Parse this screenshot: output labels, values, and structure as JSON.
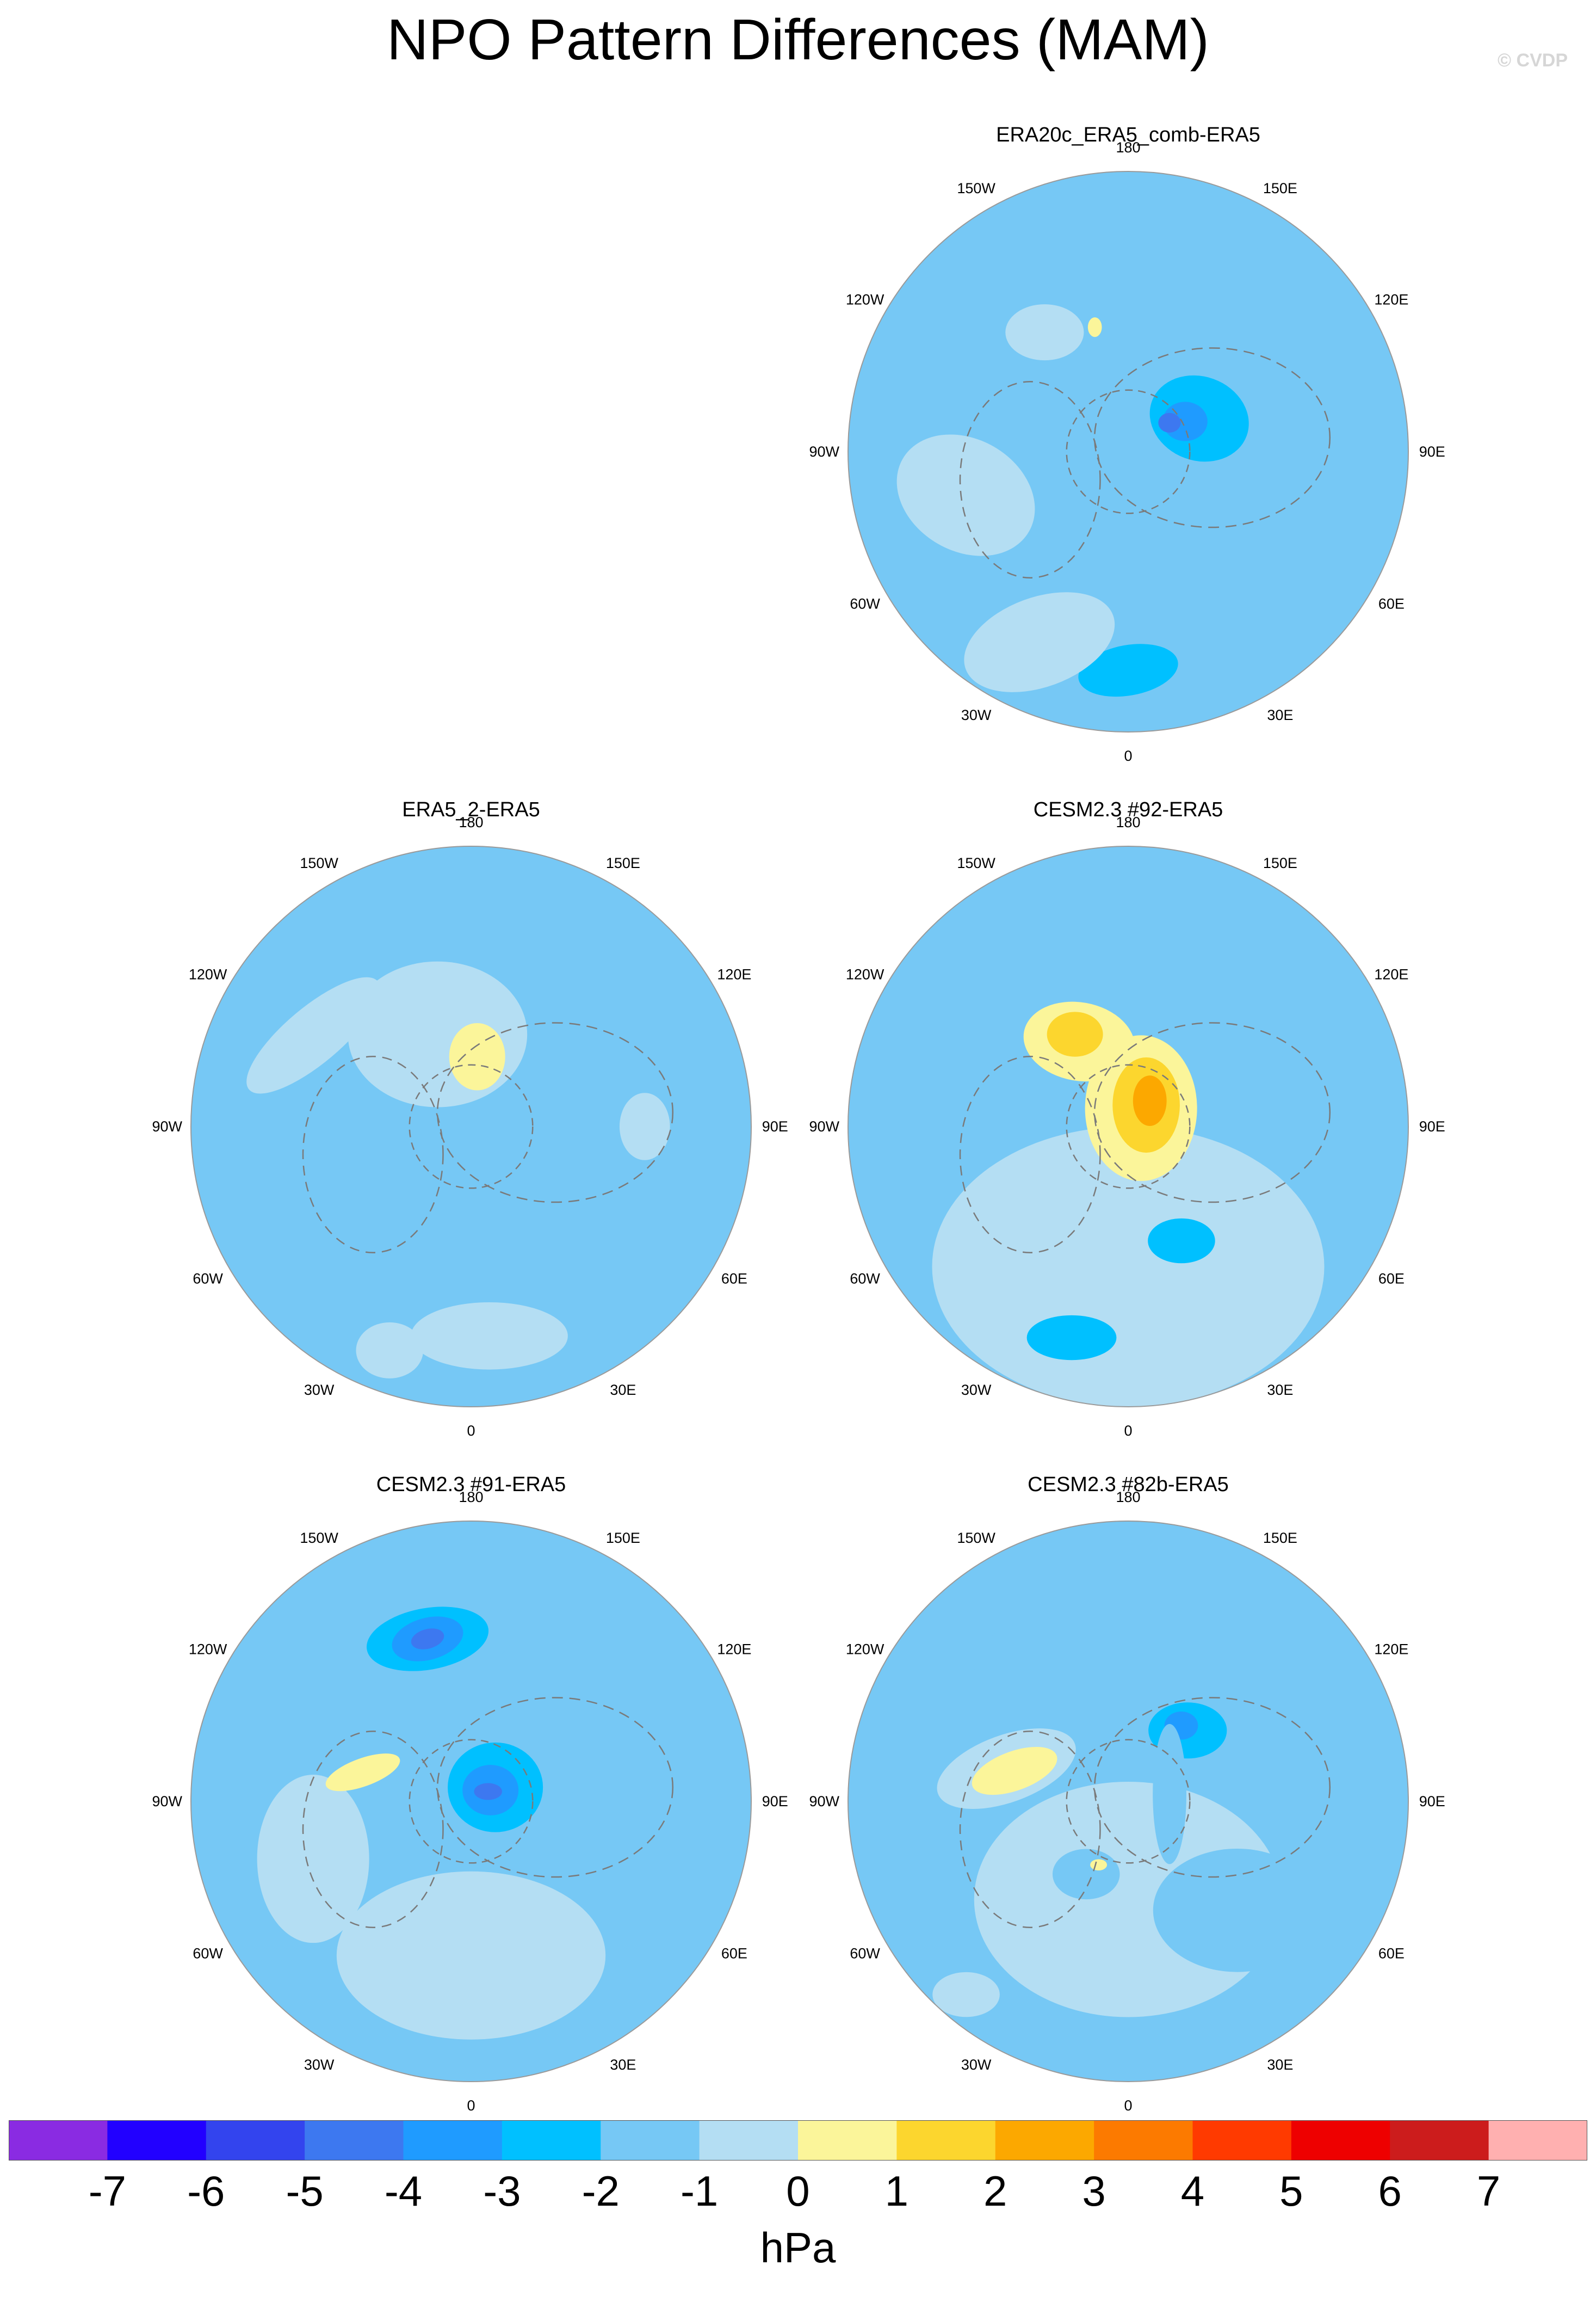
{
  "title": "NPO Pattern Differences (MAM)",
  "copyright": "© CVDP",
  "longitude_labels": [
    "180",
    "150E",
    "120E",
    "90E",
    "60E",
    "30E",
    "0",
    "30W",
    "60W",
    "90W",
    "120W",
    "150W"
  ],
  "panels": [
    {
      "id": "p1",
      "title": "ERA20c_ERA5_comb-ERA5",
      "features": [
        {
          "type": "ellipse",
          "lon": 0,
          "r": 0.78,
          "rx": 0.18,
          "ry": 0.09,
          "rot": -10,
          "level": -2
        },
        {
          "type": "ellipse",
          "lon": 250,
          "r": 0.3,
          "rx": 0.14,
          "ry": 0.1,
          "rot": 0,
          "level": -1
        },
        {
          "type": "ellipse",
          "lon": 115,
          "r": 0.28,
          "rx": 0.18,
          "ry": 0.15,
          "rot": 20,
          "level": -2
        },
        {
          "type": "ellipse",
          "lon": 118,
          "r": 0.23,
          "rx": 0.08,
          "ry": 0.07,
          "rot": 0,
          "level": -3
        },
        {
          "type": "ellipse",
          "lon": 125,
          "r": 0.18,
          "rx": 0.04,
          "ry": 0.035,
          "rot": 0,
          "level": -4
        },
        {
          "type": "ellipse",
          "lon": 215,
          "r": 0.52,
          "rx": 0.14,
          "ry": 0.1,
          "rot": 0,
          "level": 0
        },
        {
          "type": "ellipse",
          "lon": 195,
          "r": 0.46,
          "rx": 0.025,
          "ry": 0.035,
          "rot": 0,
          "level": 1
        },
        {
          "type": "ellipse",
          "lon": 285,
          "r": 0.6,
          "rx": 0.26,
          "ry": 0.2,
          "rot": 30,
          "level": 0
        },
        {
          "type": "ellipse",
          "lon": 335,
          "r": 0.75,
          "rx": 0.28,
          "ry": 0.16,
          "rot": -20,
          "level": 0
        },
        {
          "type": "ellipse",
          "lon": 150,
          "r": 0.78,
          "rx": 0.1,
          "ry": 0.07,
          "rot": 0,
          "level": -1
        }
      ]
    },
    {
      "id": "p2",
      "title": "ERA5_2-ERA5",
      "features": [
        {
          "type": "ellipse",
          "lon": 200,
          "r": 0.35,
          "rx": 0.32,
          "ry": 0.26,
          "rot": 0,
          "level": 0
        },
        {
          "type": "ellipse",
          "lon": 240,
          "r": 0.65,
          "rx": 0.3,
          "ry": 0.1,
          "rot": -40,
          "level": 0
        },
        {
          "type": "ellipse",
          "lon": 5,
          "r": 0.75,
          "rx": 0.28,
          "ry": 0.12,
          "rot": 0,
          "level": 0
        },
        {
          "type": "ellipse",
          "lon": 175,
          "r": 0.25,
          "rx": 0.1,
          "ry": 0.12,
          "rot": 0,
          "level": 1
        },
        {
          "type": "ellipse",
          "lon": 90,
          "r": 0.62,
          "rx": 0.09,
          "ry": 0.12,
          "rot": 0,
          "level": 0
        },
        {
          "type": "ellipse",
          "lon": 340,
          "r": 0.85,
          "rx": 0.12,
          "ry": 0.1,
          "rot": 0,
          "level": 0
        }
      ]
    },
    {
      "id": "p3",
      "title": "CESM2.3 #92-ERA5",
      "features": [
        {
          "type": "ellipse",
          "lon": 0,
          "r": 0.5,
          "rx": 0.7,
          "ry": 0.5,
          "rot": 0,
          "level": 0
        },
        {
          "type": "ellipse",
          "lon": 210,
          "r": 0.35,
          "rx": 0.2,
          "ry": 0.14,
          "rot": 10,
          "level": 1
        },
        {
          "type": "ellipse",
          "lon": 210,
          "r": 0.38,
          "rx": 0.1,
          "ry": 0.08,
          "rot": 0,
          "level": 2
        },
        {
          "type": "ellipse",
          "lon": 145,
          "r": 0.08,
          "rx": 0.2,
          "ry": 0.26,
          "rot": 0,
          "level": 1
        },
        {
          "type": "ellipse",
          "lon": 140,
          "r": 0.1,
          "rx": 0.12,
          "ry": 0.17,
          "rot": 0,
          "level": 2
        },
        {
          "type": "ellipse",
          "lon": 140,
          "r": 0.12,
          "rx": 0.06,
          "ry": 0.09,
          "rot": 0,
          "level": 3
        },
        {
          "type": "ellipse",
          "lon": 345,
          "r": 0.78,
          "rx": 0.16,
          "ry": 0.08,
          "rot": 0,
          "level": -2
        },
        {
          "type": "ellipse",
          "lon": 25,
          "r": 0.45,
          "rx": 0.12,
          "ry": 0.08,
          "rot": 0,
          "level": -2
        },
        {
          "type": "ellipse",
          "lon": 240,
          "r": 0.58,
          "rx": 0.07,
          "ry": 0.03,
          "rot": 0,
          "level": -1
        },
        {
          "type": "ellipse",
          "lon": 115,
          "r": 0.8,
          "rx": 0.2,
          "ry": 0.18,
          "rot": 0,
          "level": -1
        }
      ]
    },
    {
      "id": "p4",
      "title": "CESM2.3 #91-ERA5",
      "features": [
        {
          "type": "ellipse",
          "lon": 0,
          "r": 0.55,
          "rx": 0.48,
          "ry": 0.3,
          "rot": 0,
          "level": 0
        },
        {
          "type": "ellipse",
          "lon": 290,
          "r": 0.6,
          "rx": 0.2,
          "ry": 0.3,
          "rot": 0,
          "level": 0
        },
        {
          "type": "ellipse",
          "lon": 195,
          "r": 0.6,
          "rx": 0.32,
          "ry": 0.16,
          "rot": -10,
          "level": -1
        },
        {
          "type": "ellipse",
          "lon": 195,
          "r": 0.6,
          "rx": 0.22,
          "ry": 0.11,
          "rot": -10,
          "level": -2
        },
        {
          "type": "ellipse",
          "lon": 195,
          "r": 0.6,
          "rx": 0.13,
          "ry": 0.075,
          "rot": -15,
          "level": -3
        },
        {
          "type": "ellipse",
          "lon": 195,
          "r": 0.6,
          "rx": 0.06,
          "ry": 0.035,
          "rot": -15,
          "level": -4
        },
        {
          "type": "ellipse",
          "lon": 120,
          "r": 0.12,
          "rx": 0.26,
          "ry": 0.24,
          "rot": 0,
          "level": -1
        },
        {
          "type": "ellipse",
          "lon": 120,
          "r": 0.1,
          "rx": 0.17,
          "ry": 0.16,
          "rot": 0,
          "level": -2
        },
        {
          "type": "ellipse",
          "lon": 120,
          "r": 0.08,
          "rx": 0.1,
          "ry": 0.09,
          "rot": 0,
          "level": -3
        },
        {
          "type": "ellipse",
          "lon": 120,
          "r": 0.07,
          "rx": 0.05,
          "ry": 0.03,
          "rot": 0,
          "level": -4
        },
        {
          "type": "ellipse",
          "lon": 255,
          "r": 0.4,
          "rx": 0.14,
          "ry": 0.05,
          "rot": -20,
          "level": 1
        },
        {
          "type": "ellipse",
          "lon": 270,
          "r": 0.85,
          "rx": 0.1,
          "ry": 0.18,
          "rot": 0,
          "level": -1
        }
      ]
    },
    {
      "id": "p5",
      "title": "CESM2.3 #82b-ERA5",
      "features": [
        {
          "type": "ellipse",
          "lon": 0,
          "r": 0.35,
          "rx": 0.55,
          "ry": 0.42,
          "rot": 0,
          "level": 0
        },
        {
          "type": "ellipse",
          "lon": 180,
          "r": 0.45,
          "rx": 0.55,
          "ry": 0.3,
          "rot": 0,
          "level": -1
        },
        {
          "type": "ellipse",
          "lon": 140,
          "r": 0.33,
          "rx": 0.14,
          "ry": 0.1,
          "rot": 0,
          "level": -2
        },
        {
          "type": "ellipse",
          "lon": 145,
          "r": 0.33,
          "rx": 0.06,
          "ry": 0.05,
          "rot": 0,
          "level": -3
        },
        {
          "type": "ellipse",
          "lon": 100,
          "r": 0.15,
          "rx": 0.06,
          "ry": 0.25,
          "rot": 0,
          "level": -1
        },
        {
          "type": "ellipse",
          "lon": 255,
          "r": 0.45,
          "rx": 0.26,
          "ry": 0.12,
          "rot": -20,
          "level": 0
        },
        {
          "type": "ellipse",
          "lon": 255,
          "r": 0.42,
          "rx": 0.16,
          "ry": 0.07,
          "rot": -20,
          "level": 1
        },
        {
          "type": "ellipse",
          "lon": 330,
          "r": 0.3,
          "rx": 0.12,
          "ry": 0.09,
          "rot": 0,
          "level": -1
        },
        {
          "type": "ellipse",
          "lon": 335,
          "r": 0.25,
          "rx": 0.03,
          "ry": 0.02,
          "rot": 0,
          "level": 1
        },
        {
          "type": "ellipse",
          "lon": 45,
          "r": 0.55,
          "rx": 0.3,
          "ry": 0.22,
          "rot": 0,
          "level": -1
        },
        {
          "type": "ellipse",
          "lon": 320,
          "r": 0.9,
          "rx": 0.12,
          "ry": 0.08,
          "rot": 0,
          "level": 0
        }
      ]
    }
  ],
  "colorbar": {
    "colors": [
      "#8a2be2",
      "#2200ff",
      "#3344ee",
      "#3d78f0",
      "#1f9bff",
      "#00c0ff",
      "#76c8f5",
      "#b4def3",
      "#fbf59a",
      "#fcd62e",
      "#fca800",
      "#fc7a00",
      "#ff3a00",
      "#ee0000",
      "#cc1c1c",
      "#ffb0b0"
    ],
    "labels": [
      "-7",
      "-6",
      "-5",
      "-4",
      "-3",
      "-2",
      "-1",
      "0",
      "1",
      "2",
      "3",
      "4",
      "5",
      "6",
      "7"
    ],
    "units": "hPa"
  }
}
